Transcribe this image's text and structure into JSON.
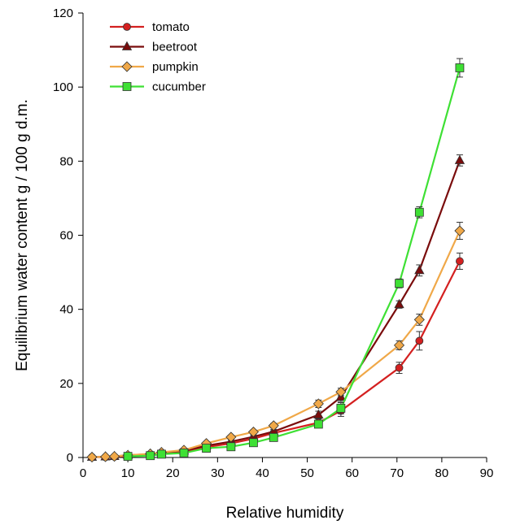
{
  "chart_data": {
    "type": "line",
    "title": "",
    "xlabel": "Relative humidity",
    "ylabel": "Equilibrium water content g / 100 g d.m.",
    "xlim": [
      0,
      90
    ],
    "ylim": [
      0,
      120
    ],
    "xticks": [
      0,
      10,
      20,
      30,
      40,
      50,
      60,
      70,
      80,
      90
    ],
    "yticks": [
      0,
      20,
      40,
      60,
      80,
      100,
      120
    ],
    "grid": false,
    "legend_position": "top-left",
    "series": [
      {
        "name": "tomato",
        "color": "#d42020",
        "marker": "circle",
        "x": [
          2,
          5,
          7,
          10,
          15,
          17.5,
          22.5,
          27.5,
          33,
          38,
          42.5,
          52.5,
          57.5,
          70.5,
          75,
          84
        ],
        "y": [
          0.1,
          0.1,
          0.2,
          0.4,
          0.8,
          1.2,
          1.6,
          2.8,
          3.8,
          5.1,
          6.6,
          9.4,
          12.6,
          24.2,
          31.5,
          53
        ],
        "err": [
          0.2,
          0.2,
          0.2,
          0.2,
          0.3,
          0.3,
          0.3,
          0.4,
          0.5,
          0.5,
          0.6,
          1,
          1.5,
          1.5,
          2.5,
          2.2
        ]
      },
      {
        "name": "beetroot",
        "color": "#7a0c0c",
        "marker": "triangle",
        "x": [
          2,
          5,
          7,
          10,
          15,
          17.5,
          22.5,
          27.5,
          33,
          38,
          42.5,
          52.5,
          57.5,
          70.5,
          75,
          84
        ],
        "y": [
          0.1,
          0.2,
          0.3,
          0.6,
          0.9,
          1.3,
          1.8,
          3.2,
          4.3,
          5.6,
          7,
          11.5,
          16.3,
          41.3,
          50.5,
          80.2
        ],
        "err": [
          0.2,
          0.2,
          0.2,
          0.2,
          0.3,
          0.3,
          0.3,
          0.4,
          0.5,
          0.5,
          0.6,
          1,
          1.2,
          1,
          1.5,
          1.5
        ]
      },
      {
        "name": "pumpkin",
        "color": "#f0a848",
        "marker": "diamond",
        "x": [
          2,
          5,
          7,
          10,
          15,
          17.5,
          22.5,
          27.5,
          33,
          38,
          42.5,
          52.5,
          57.5,
          70.5,
          75,
          84
        ],
        "y": [
          0.1,
          0.2,
          0.3,
          0.6,
          1,
          1.4,
          2,
          3.8,
          5.5,
          6.9,
          8.6,
          14.5,
          17.7,
          30.3,
          37.2,
          61.2
        ],
        "err": [
          0.2,
          0.2,
          0.2,
          0.2,
          0.3,
          0.3,
          0.3,
          0.4,
          0.5,
          0.5,
          0.6,
          1,
          1,
          1.2,
          1.5,
          2.3
        ]
      },
      {
        "name": "cucumber",
        "color": "#3ee034",
        "marker": "square",
        "x": [
          10,
          15,
          17.5,
          22.5,
          27.5,
          33,
          38,
          42.5,
          52.5,
          57.5,
          70.5,
          75,
          84
        ],
        "y": [
          0.3,
          0.5,
          0.9,
          1.2,
          2.5,
          2.9,
          4,
          5.4,
          9,
          13.3,
          47,
          66.2,
          105.2
        ],
        "err": [
          0.2,
          0.2,
          0.3,
          0.3,
          0.4,
          0.4,
          0.5,
          0.5,
          0.8,
          1.5,
          1.2,
          1.5,
          2.5
        ]
      }
    ]
  }
}
